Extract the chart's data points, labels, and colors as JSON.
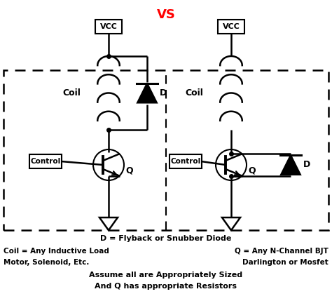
{
  "title": "VS",
  "title_color": "#ff0000",
  "bg_color": "#ffffff",
  "line_color": "#000000",
  "figsize": [
    4.74,
    4.29
  ],
  "dpi": 100,
  "ann_d": "D = Flyback or Snubber Diode",
  "ann_coil": "Coil = Any Inductive Load\nMotor, Solenoid, Etc.",
  "ann_q": "Q = Any N-Channel BJT\nDarlington or Mosfet",
  "ann_assume": "Assume all are Appropriately Sized\nAnd Q has appropriate Resistors"
}
